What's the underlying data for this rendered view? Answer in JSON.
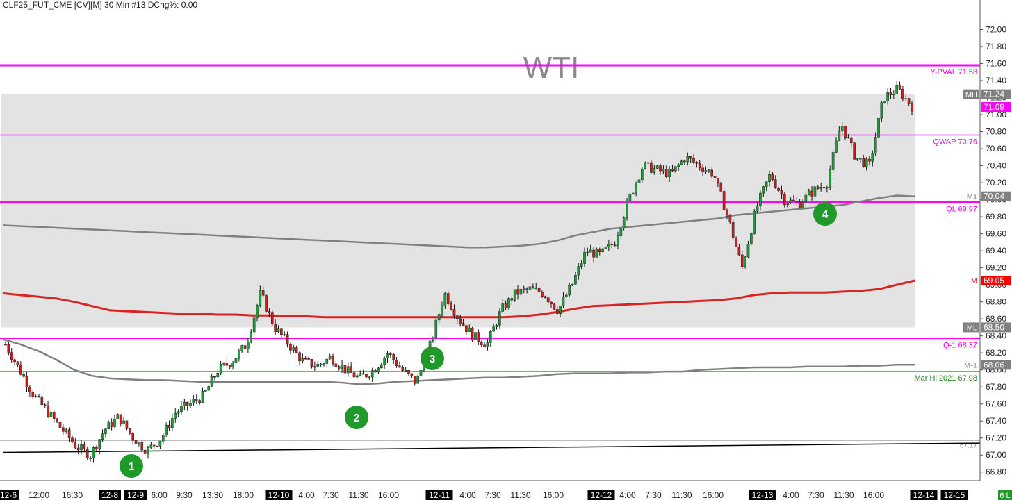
{
  "header": {
    "title": "CLF25_FUT_CME [CV][M]  30 Min  #13 DChg%: 0.00"
  },
  "watermark": "WTI",
  "chart_data": {
    "type": "candlestick",
    "symbol": "CLF25_FUT_CME",
    "ylim": [
      66.7,
      72.2
    ],
    "yticks": [
      "72.00",
      "71.80",
      "71.60",
      "71.40",
      "71.20",
      "71.00",
      "70.80",
      "70.60",
      "70.40",
      "70.20",
      "70.00",
      "69.80",
      "69.60",
      "69.40",
      "69.20",
      "69.00",
      "68.80",
      "68.60",
      "68.40",
      "68.20",
      "68.00",
      "67.80",
      "67.60",
      "67.40",
      "67.20",
      "67.00",
      "66.80"
    ],
    "xticks": [
      {
        "label": "12-6",
        "date": true
      },
      {
        "label": "12:00"
      },
      {
        "label": "16:30"
      },
      {
        "label": "12-8",
        "date": true
      },
      {
        "label": "12-9",
        "date": true
      },
      {
        "label": "6:00"
      },
      {
        "label": "9:30"
      },
      {
        "label": "13:30"
      },
      {
        "label": "18:00"
      },
      {
        "label": "12-10",
        "date": true
      },
      {
        "label": "4:00"
      },
      {
        "label": "7:30"
      },
      {
        "label": "11:30"
      },
      {
        "label": "16:00"
      },
      {
        "label": "12-11",
        "date": true
      },
      {
        "label": "4:00"
      },
      {
        "label": "7:30"
      },
      {
        "label": "11:30"
      },
      {
        "label": "16:00"
      },
      {
        "label": "12-12",
        "date": true
      },
      {
        "label": "4:00"
      },
      {
        "label": "7:30"
      },
      {
        "label": "11:30"
      },
      {
        "label": "16:00"
      },
      {
        "label": "12-13",
        "date": true
      },
      {
        "label": "4:00"
      },
      {
        "label": "7:30"
      },
      {
        "label": "11:30"
      },
      {
        "label": "16:00"
      },
      {
        "label": "12-14",
        "date": true
      },
      {
        "label": "12-15",
        "date": true
      }
    ],
    "value_area": {
      "high": 71.24,
      "low": 68.5
    },
    "levels": [
      {
        "label": "Y-PVAL",
        "value": 71.58,
        "color": "#ff00ff"
      },
      {
        "label": "QWAP",
        "value": 70.76,
        "color": "#ff00ff"
      },
      {
        "label": "QL",
        "value": 69.97,
        "color": "#ff00ff"
      },
      {
        "label": "Q-1",
        "value": 68.37,
        "color": "#ff00ff"
      },
      {
        "label": "Mar Hi 2021",
        "value": 67.98,
        "color": "#1a8a1a"
      }
    ],
    "right_tags": [
      {
        "label": "MH",
        "value": 71.24,
        "bg": "#808080"
      },
      {
        "label": "",
        "value": 71.09,
        "bg": "#ff00ff"
      },
      {
        "label": "M1",
        "value": 70.04,
        "bg": "#808080"
      },
      {
        "label": "M",
        "value": 69.05,
        "bg": "#ff0000"
      },
      {
        "label": "ML",
        "value": 68.5,
        "bg": "#808080"
      },
      {
        "label": "M-1",
        "value": 68.06,
        "bg": "#808080"
      }
    ],
    "faint_level": {
      "value": 67.17,
      "label": "67.17"
    },
    "trendline": {
      "start": 67.03,
      "end": 67.14
    },
    "markers": [
      "1",
      "2",
      "3",
      "4"
    ],
    "corner_label": "6 L",
    "series": [
      {
        "name": "M1",
        "values": [
          69.7,
          69.69,
          69.68,
          69.67,
          69.66,
          69.65,
          69.64,
          69.63,
          69.62,
          69.61,
          69.6,
          69.59,
          69.58,
          69.57,
          69.56,
          69.55,
          69.54,
          69.53,
          69.52,
          69.51,
          69.5,
          69.49,
          69.48,
          69.47,
          69.46,
          69.45,
          69.44,
          69.44,
          69.45,
          69.46,
          69.48,
          69.52,
          69.58,
          69.62,
          69.66,
          69.68,
          69.7,
          69.72,
          69.74,
          69.76,
          69.78,
          69.82,
          69.84,
          69.86,
          69.88,
          69.9,
          69.92,
          69.94,
          69.98,
          70.02,
          70.05,
          70.04
        ]
      },
      {
        "name": "M",
        "values": [
          68.9,
          68.88,
          68.86,
          68.84,
          68.8,
          68.75,
          68.7,
          68.69,
          68.68,
          68.67,
          68.66,
          68.66,
          68.65,
          68.65,
          68.64,
          68.64,
          68.63,
          68.63,
          68.62,
          68.62,
          68.62,
          68.62,
          68.62,
          68.62,
          68.62,
          68.62,
          68.62,
          68.62,
          68.62,
          68.63,
          68.65,
          68.68,
          68.72,
          68.75,
          68.76,
          68.77,
          68.78,
          68.79,
          68.8,
          68.81,
          68.82,
          68.84,
          68.88,
          68.9,
          68.91,
          68.91,
          68.91,
          68.92,
          68.93,
          68.95,
          69.0,
          69.05
        ]
      },
      {
        "name": "M-1",
        "values": [
          68.36,
          68.3,
          68.22,
          68.12,
          68.0,
          67.93,
          67.9,
          67.89,
          67.88,
          67.88,
          67.87,
          67.86,
          67.86,
          67.86,
          67.86,
          67.86,
          67.86,
          67.86,
          67.86,
          67.85,
          67.83,
          67.84,
          67.86,
          67.87,
          67.88,
          67.89,
          67.9,
          67.91,
          67.91,
          67.92,
          67.93,
          67.95,
          67.96,
          67.96,
          67.96,
          67.97,
          67.97,
          67.98,
          67.98,
          68.0,
          68.01,
          68.02,
          68.03,
          68.03,
          68.03,
          68.04,
          68.04,
          68.04,
          68.05,
          68.05,
          68.06,
          68.06
        ]
      },
      {
        "name": "Price",
        "values": [
          68.3,
          68.0,
          67.7,
          67.5,
          67.3,
          67.1,
          67.0,
          67.3,
          67.45,
          67.2,
          67.05,
          67.2,
          67.5,
          67.6,
          67.7,
          68.0,
          68.1,
          68.3,
          68.9,
          68.5,
          68.3,
          68.1,
          68.05,
          68.15,
          68.0,
          67.9,
          68.0,
          68.2,
          68.0,
          67.85,
          68.3,
          68.9,
          68.6,
          68.4,
          68.3,
          68.7,
          68.9,
          68.95,
          68.9,
          68.7,
          69.0,
          69.4,
          69.35,
          69.5,
          70.0,
          70.4,
          70.35,
          70.3,
          70.5,
          70.4,
          70.3,
          69.8,
          69.2,
          69.9,
          70.3,
          70.0,
          69.95,
          70.1,
          70.2,
          70.9,
          70.5,
          70.4,
          71.2,
          71.3,
          71.1
        ]
      }
    ]
  }
}
